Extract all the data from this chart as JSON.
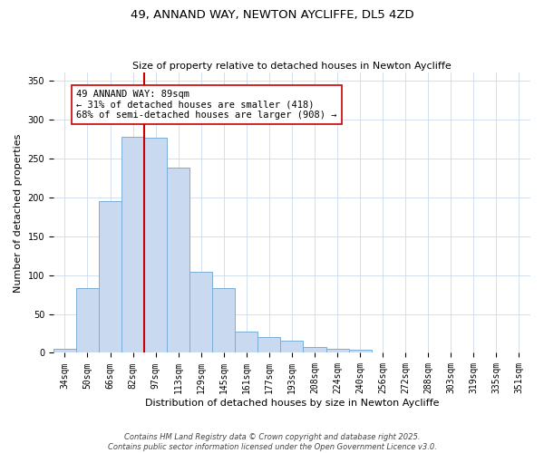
{
  "title": "49, ANNAND WAY, NEWTON AYCLIFFE, DL5 4ZD",
  "subtitle": "Size of property relative to detached houses in Newton Aycliffe",
  "xlabel": "Distribution of detached houses by size in Newton Aycliffe",
  "ylabel": "Number of detached properties",
  "categories": [
    "34sqm",
    "50sqm",
    "66sqm",
    "82sqm",
    "97sqm",
    "113sqm",
    "129sqm",
    "145sqm",
    "161sqm",
    "177sqm",
    "193sqm",
    "208sqm",
    "224sqm",
    "240sqm",
    "256sqm",
    "272sqm",
    "288sqm",
    "303sqm",
    "319sqm",
    "335sqm",
    "351sqm"
  ],
  "values": [
    5,
    83,
    195,
    278,
    276,
    238,
    104,
    83,
    27,
    20,
    16,
    7,
    5,
    4,
    0,
    0,
    0,
    1,
    0,
    1,
    1
  ],
  "bar_color": "#c9d9f0",
  "bar_edge_color": "#7aaed6",
  "vline_x": 3.5,
  "vline_color": "#cc0000",
  "annotation_text": "49 ANNAND WAY: 89sqm\n← 31% of detached houses are smaller (418)\n68% of semi-detached houses are larger (908) →",
  "annotation_box_color": "#ffffff",
  "annotation_box_edge_color": "#cc0000",
  "ylim": [
    0,
    360
  ],
  "yticks": [
    0,
    50,
    100,
    150,
    200,
    250,
    300,
    350
  ],
  "footer1": "Contains HM Land Registry data © Crown copyright and database right 2025.",
  "footer2": "Contains public sector information licensed under the Open Government Licence v3.0.",
  "background_color": "#ffffff",
  "grid_color": "#ccd9ec",
  "title_fontsize": 9.5,
  "subtitle_fontsize": 8,
  "axis_label_fontsize": 8,
  "tick_fontsize": 7,
  "annotation_fontsize": 7.5,
  "footer_fontsize": 6
}
